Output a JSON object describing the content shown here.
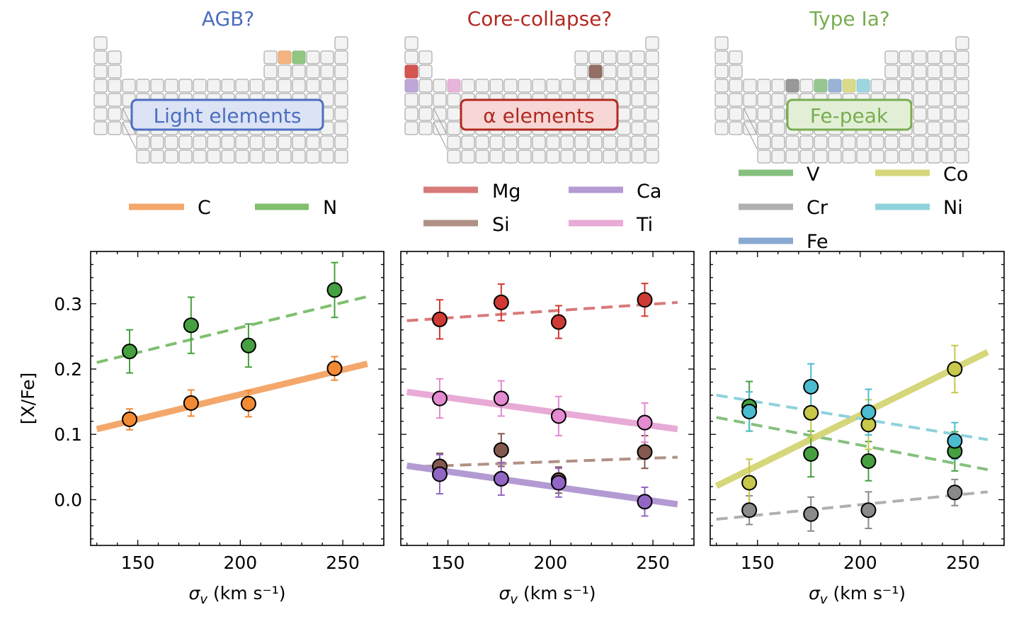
{
  "colors": {
    "C": "#f4a76b",
    "N": "#7fbf6e",
    "Mg": "#d8797a",
    "Si": "#b09186",
    "Ca": "#b39ad3",
    "Ti": "#e8aad6",
    "V": "#86c07f",
    "Cr": "#b0b0b0",
    "Fe": "#8aa9d2",
    "Co": "#d6d67a",
    "Ni": "#8fd2dc",
    "C_marker": "#f28a33",
    "N_marker": "#46a040",
    "Mg_marker": "#d03a34",
    "Si_marker": "#83594d",
    "Ca_marker": "#9266c4",
    "Ti_marker": "#e38ad0",
    "V_marker": "#46a040",
    "Cr_marker": "#8a8a8a",
    "Co_marker": "#c7c74a",
    "Ni_marker": "#4bbccf",
    "agb_title": "#4d6ec0",
    "cc_title": "#b22a22",
    "ia_title": "#79ad4f"
  },
  "panels": [
    {
      "title": "AGB?",
      "group_label": "Light elements",
      "legend": [
        "C",
        "N"
      ]
    },
    {
      "title": "Core-collapse?",
      "group_label": "α elements",
      "legend": [
        "Mg",
        "Ca",
        "Si",
        "Ti"
      ]
    },
    {
      "title": "Type Ia?",
      "group_label": "Fe-peak",
      "legend": [
        "V",
        "Co",
        "Cr",
        "Ni",
        "Fe"
      ]
    }
  ],
  "chart_data": [
    {
      "type": "scatter",
      "xlabel": "σ_v (km s⁻¹)",
      "ylabel": "[X/Fe]",
      "xlim": [
        127,
        270
      ],
      "ylim": [
        -0.07,
        0.38
      ],
      "xticks": [
        "150",
        "200",
        "250"
      ],
      "yticks": [
        "0.0",
        "0.1",
        "0.2",
        "0.3"
      ],
      "series": [
        {
          "name": "C",
          "x": [
            146,
            176,
            204,
            246
          ],
          "y": [
            0.123,
            0.148,
            0.147,
            0.201
          ],
          "yerr": [
            0.016,
            0.02,
            0.02,
            0.018
          ],
          "fit": {
            "x": [
              130,
              262
            ],
            "y": [
              0.108,
              0.208
            ]
          },
          "fit_style": "solid"
        },
        {
          "name": "N",
          "x": [
            146,
            176,
            204,
            246
          ],
          "y": [
            0.227,
            0.267,
            0.236,
            0.321
          ],
          "yerr": [
            0.033,
            0.043,
            0.033,
            0.042
          ],
          "fit": {
            "x": [
              130,
              262
            ],
            "y": [
              0.21,
              0.311
            ]
          },
          "fit_style": "dashed"
        }
      ]
    },
    {
      "type": "scatter",
      "xlabel": "σ_v (km s⁻¹)",
      "ylabel": "",
      "xlim": [
        127,
        270
      ],
      "ylim": [
        -0.07,
        0.38
      ],
      "xticks": [
        "150",
        "200",
        "250"
      ],
      "yticks": [
        "0.0",
        "0.1",
        "0.2",
        "0.3"
      ],
      "series": [
        {
          "name": "Mg",
          "x": [
            146,
            176,
            204,
            246
          ],
          "y": [
            0.276,
            0.302,
            0.272,
            0.306
          ],
          "yerr": [
            0.03,
            0.028,
            0.025,
            0.025
          ],
          "fit": {
            "x": [
              130,
              262
            ],
            "y": [
              0.274,
              0.302
            ]
          },
          "fit_style": "dashed"
        },
        {
          "name": "Si",
          "x": [
            146,
            176,
            204,
            246
          ],
          "y": [
            0.051,
            0.076,
            0.03,
            0.073
          ],
          "yerr": [
            0.02,
            0.025,
            0.02,
            0.025
          ],
          "fit": {
            "x": [
              130,
              262
            ],
            "y": [
              0.05,
              0.065
            ]
          },
          "fit_style": "dashed"
        },
        {
          "name": "Ca",
          "x": [
            146,
            176,
            204,
            246
          ],
          "y": [
            0.039,
            0.032,
            0.026,
            -0.003
          ],
          "yerr": [
            0.03,
            0.025,
            0.022,
            0.022
          ],
          "fit": {
            "x": [
              130,
              262
            ],
            "y": [
              0.052,
              -0.007
            ]
          },
          "fit_style": "solid"
        },
        {
          "name": "Ti",
          "x": [
            146,
            176,
            204,
            246
          ],
          "y": [
            0.155,
            0.155,
            0.128,
            0.118
          ],
          "yerr": [
            0.03,
            0.027,
            0.03,
            0.03
          ],
          "fit": {
            "x": [
              130,
              262
            ],
            "y": [
              0.165,
              0.108
            ]
          },
          "fit_style": "solid"
        }
      ]
    },
    {
      "type": "scatter",
      "xlabel": "σ_v (km s⁻¹)",
      "ylabel": "",
      "xlim": [
        127,
        270
      ],
      "ylim": [
        -0.07,
        0.38
      ],
      "xticks": [
        "150",
        "200",
        "250"
      ],
      "yticks": [
        "0.0",
        "0.1",
        "0.2",
        "0.3"
      ],
      "series": [
        {
          "name": "V",
          "x": [
            146,
            176,
            204,
            246
          ],
          "y": [
            0.143,
            0.07,
            0.059,
            0.074
          ],
          "yerr": [
            0.038,
            0.035,
            0.03,
            0.03
          ],
          "fit": {
            "x": [
              130,
              262
            ],
            "y": [
              0.126,
              0.046
            ]
          },
          "fit_style": "dashed"
        },
        {
          "name": "Cr",
          "x": [
            146,
            176,
            204,
            246
          ],
          "y": [
            -0.016,
            -0.022,
            -0.016,
            0.011
          ],
          "yerr": [
            0.022,
            0.026,
            0.028,
            0.02
          ],
          "fit": {
            "x": [
              130,
              262
            ],
            "y": [
              -0.03,
              0.012
            ]
          },
          "fit_style": "dashed"
        },
        {
          "name": "Co",
          "x": [
            146,
            176,
            204,
            246
          ],
          "y": [
            0.026,
            0.133,
            0.115,
            0.2
          ],
          "yerr": [
            0.036,
            0.038,
            0.038,
            0.036
          ],
          "fit": {
            "x": [
              130,
              262
            ],
            "y": [
              0.021,
              0.226
            ]
          },
          "fit_style": "solid"
        },
        {
          "name": "Ni",
          "x": [
            146,
            176,
            204,
            246
          ],
          "y": [
            0.135,
            0.173,
            0.134,
            0.09
          ],
          "yerr": [
            0.03,
            0.035,
            0.035,
            0.028
          ],
          "fit": {
            "x": [
              130,
              262
            ],
            "y": [
              0.16,
              0.092
            ]
          },
          "fit_style": "dashed"
        }
      ]
    }
  ]
}
